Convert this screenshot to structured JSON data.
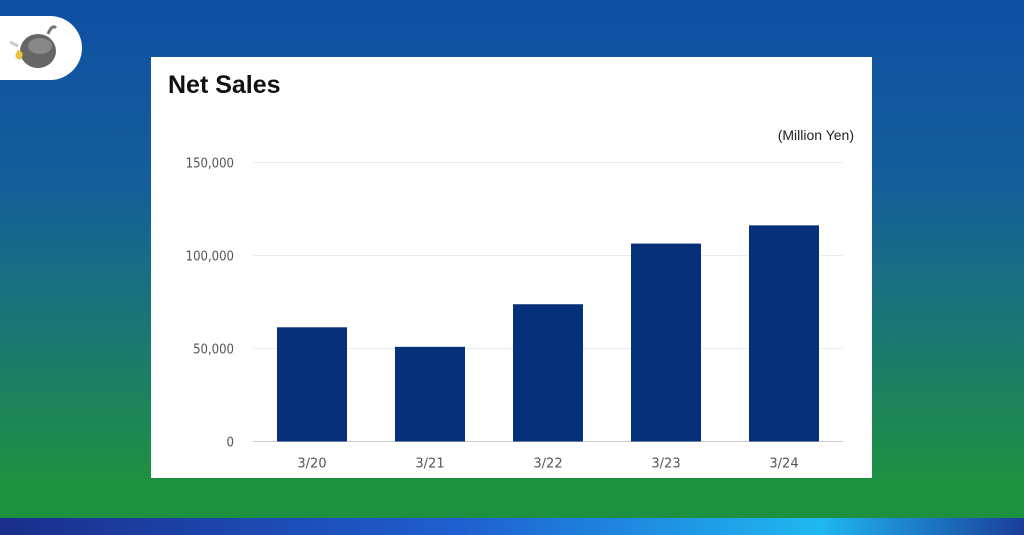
{
  "chart_data": {
    "type": "bar",
    "title": "Net Sales",
    "unit_label": "(Million Yen)",
    "categories": [
      "3/20",
      "3/21",
      "3/22",
      "3/23",
      "3/24"
    ],
    "values": [
      61400,
      50900,
      73800,
      106400,
      116200
    ],
    "ylim": [
      0,
      150000
    ],
    "yticks": [
      0,
      50000,
      100000,
      150000
    ],
    "ytick_labels": [
      "0",
      "50,000",
      "100,000",
      "150,000"
    ],
    "grid": true,
    "bar_color": "#062f7a"
  }
}
